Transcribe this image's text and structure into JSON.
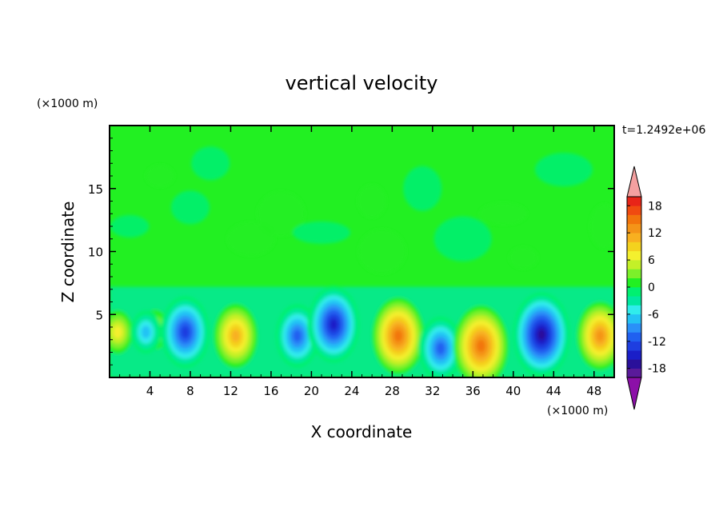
{
  "chart_data": {
    "type": "heatmap",
    "title": "vertical velocity",
    "xlabel": "X coordinate",
    "ylabel": "Z coordinate",
    "x_unit": "(×1000 m)",
    "y_unit": "(×1000 m)",
    "time_label": "t=1.2492e+06",
    "xlim": [
      0,
      50
    ],
    "ylim": [
      0,
      20
    ],
    "x_ticks": [
      4,
      8,
      12,
      16,
      20,
      24,
      28,
      32,
      36,
      40,
      44,
      48
    ],
    "y_ticks": [
      5,
      10,
      15
    ],
    "colorbar": {
      "levels": [
        -20,
        -18,
        -16,
        -14,
        -12,
        -10,
        -8,
        -6,
        -4,
        -2,
        0,
        2,
        4,
        6,
        8,
        10,
        12,
        14,
        16,
        18,
        20
      ],
      "labels": [
        "18",
        "12",
        "6",
        "0",
        "-6",
        "-12",
        "-18"
      ],
      "label_values": [
        18,
        12,
        6,
        0,
        -6,
        -12,
        -18
      ],
      "colors": [
        "#5a1a9a",
        "#2a109a",
        "#1a1ec8",
        "#1e3ee0",
        "#2060f0",
        "#2a90f8",
        "#24c2f4",
        "#30ecec",
        "#00e8a0",
        "#00f070",
        "#22f022",
        "#7cf02a",
        "#c4f028",
        "#f4f02e",
        "#f4d21e",
        "#f8b020",
        "#f49418",
        "#f2740c",
        "#f04a10",
        "#e82418"
      ],
      "under_color": "#8c10a8",
      "over_color": "#f4a0a0"
    },
    "cells": [
      {
        "x": 0.8,
        "z": 3.6,
        "value": 6
      },
      {
        "x": 4.5,
        "z": 3.8,
        "value": 5
      },
      {
        "x": 3.6,
        "z": 3.6,
        "value": -6
      },
      {
        "x": 7.5,
        "z": 3.6,
        "value": -13
      },
      {
        "x": 12.5,
        "z": 3.3,
        "value": 11
      },
      {
        "x": 18.6,
        "z": 3.3,
        "value": -11
      },
      {
        "x": 22.2,
        "z": 4.2,
        "value": -14
      },
      {
        "x": 28.6,
        "z": 3.3,
        "value": 14
      },
      {
        "x": 32.8,
        "z": 2.3,
        "value": -11
      },
      {
        "x": 36.8,
        "z": 2.5,
        "value": 15
      },
      {
        "x": 42.8,
        "z": 3.4,
        "value": -16
      },
      {
        "x": 48.6,
        "z": 3.3,
        "value": 12
      }
    ]
  }
}
